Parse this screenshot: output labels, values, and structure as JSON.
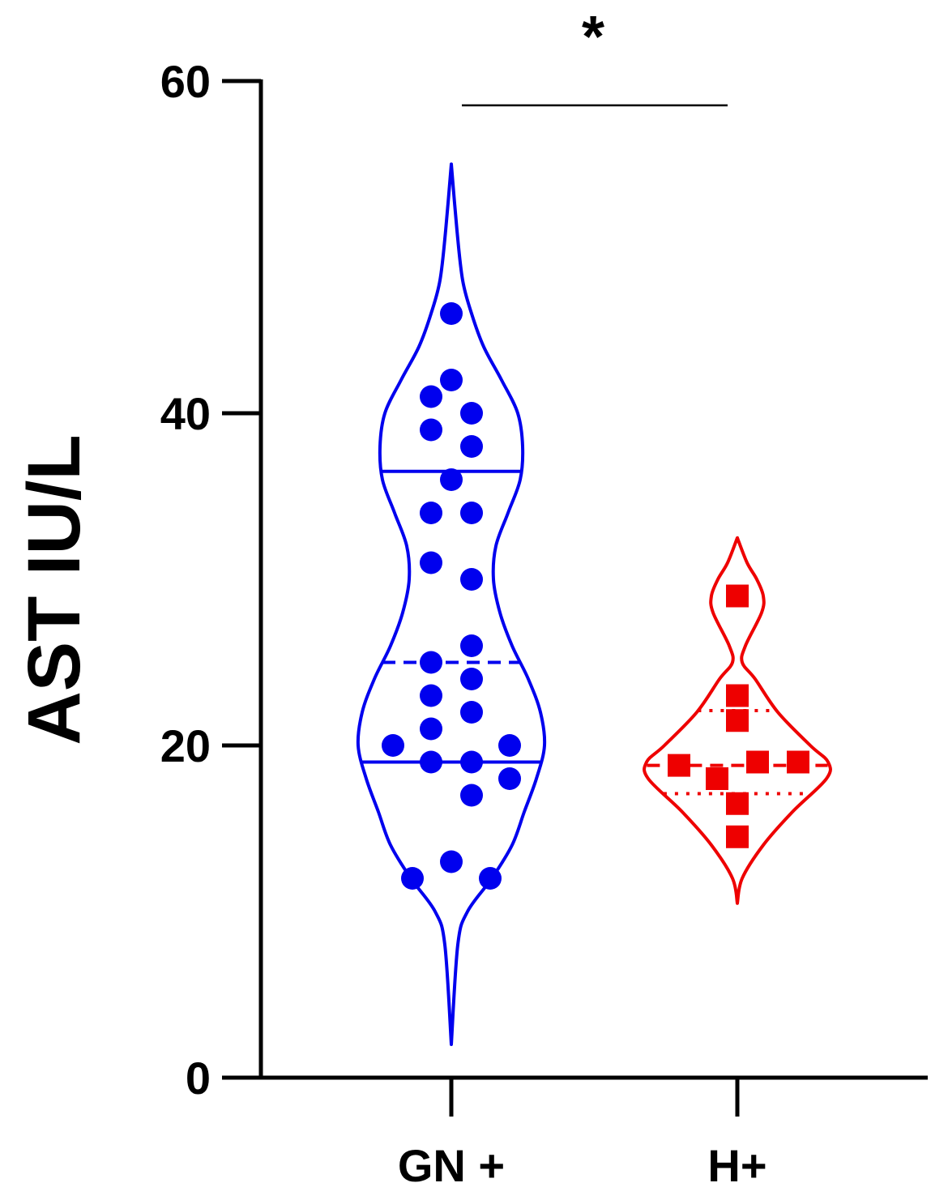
{
  "chart_data": {
    "type": "violin",
    "ylabel": "AST IU/L",
    "ylim": [
      0,
      60
    ],
    "yticks": [
      0,
      20,
      40,
      60
    ],
    "categories": [
      "GN +",
      "H+"
    ],
    "series": [
      {
        "category": "GN +",
        "color": "#0000ee",
        "marker": "circle",
        "violin_range": [
          2,
          55
        ],
        "median": 25,
        "quartiles": [
          19,
          36.5
        ],
        "values": [
          46,
          42,
          41,
          40,
          39,
          38,
          36,
          34,
          34,
          31,
          30,
          26,
          25,
          24,
          23,
          22,
          21,
          20,
          20,
          19,
          19,
          18,
          17,
          13,
          12,
          12
        ]
      },
      {
        "category": "H+",
        "color": "#ee0000",
        "marker": "square",
        "violin_range": [
          10.5,
          32.5
        ],
        "median": 18.8,
        "quartiles": [
          17.1,
          22.1
        ],
        "values": [
          29,
          23,
          21.5,
          19,
          19,
          18.8,
          18,
          16.5,
          14.5
        ]
      }
    ],
    "significance": {
      "between": [
        "GN +",
        "H+"
      ],
      "label": "*"
    },
    "grid": false,
    "legend": "none"
  }
}
